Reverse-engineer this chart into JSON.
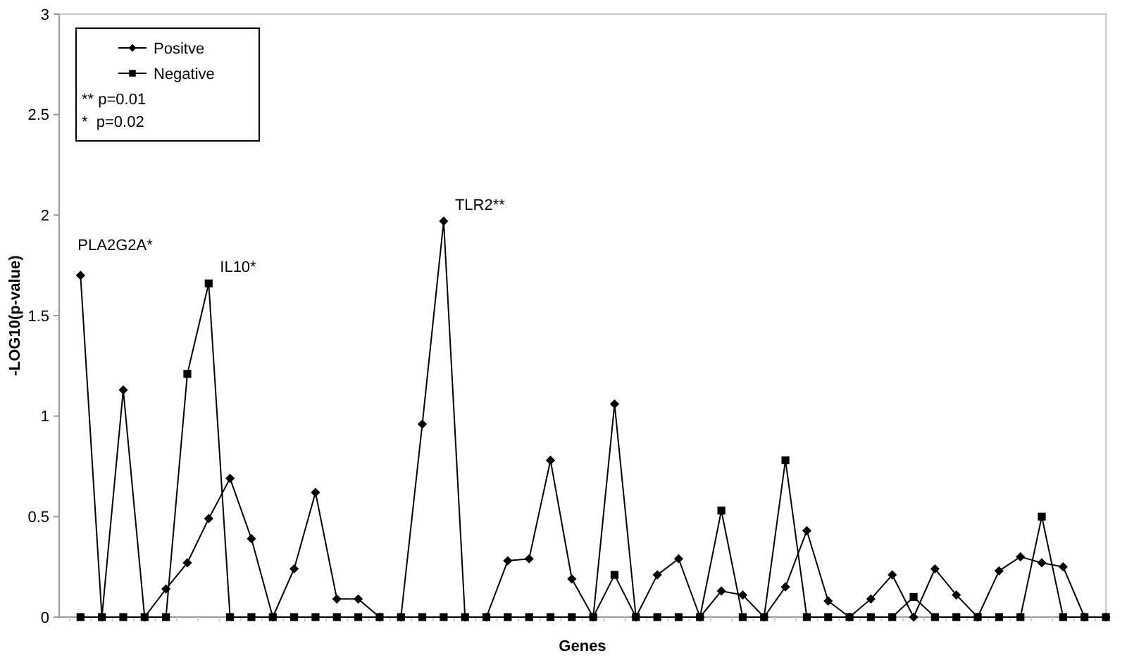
{
  "chart_data": {
    "type": "line",
    "xlabel": "Genes",
    "ylabel": "-LOG10(p-value)",
    "categories": [
      null,
      null,
      null,
      null,
      null,
      null,
      null,
      null,
      null,
      null,
      null,
      null,
      null,
      null,
      null,
      null,
      null,
      null,
      null,
      null,
      null,
      null,
      null,
      null,
      null,
      null,
      null,
      null,
      null,
      null,
      null,
      null,
      null,
      null,
      null,
      null,
      null,
      null,
      null,
      null,
      null,
      null,
      null,
      null,
      null,
      null,
      null,
      null,
      null
    ],
    "series": [
      {
        "name": "Positve",
        "color": "#000000",
        "marker": "diamond",
        "values": [
          1.7,
          0,
          1.13,
          0,
          0.14,
          0.27,
          0.49,
          0.69,
          0.39,
          0,
          0.24,
          0.62,
          0.09,
          0.09,
          0,
          0,
          0.96,
          1.97,
          0,
          0,
          0.28,
          0.29,
          0.78,
          0.19,
          0,
          1.06,
          0,
          0.21,
          0.29,
          0,
          0.13,
          0.11,
          0,
          0.15,
          0.43,
          0.08,
          0,
          0.09,
          0.21,
          0,
          0.24,
          0.11,
          0,
          0.23,
          0.3,
          0.27,
          0.25,
          0,
          0
        ]
      },
      {
        "name": "Negative",
        "color": "#000000",
        "marker": "square",
        "values": [
          0,
          0,
          0,
          0,
          0,
          1.21,
          1.66,
          0,
          0,
          0,
          0,
          0,
          0,
          0,
          0,
          0,
          0,
          0,
          0,
          0,
          0,
          0,
          0,
          0,
          0,
          0.21,
          0,
          0,
          0,
          0,
          0.53,
          0,
          0,
          0.78,
          0,
          0,
          0,
          0,
          0,
          0.1,
          0,
          0,
          0,
          0,
          0,
          0.5,
          0,
          0,
          0
        ]
      }
    ],
    "ylim": [
      0,
      3
    ],
    "yticks": [
      0,
      0.5,
      1,
      1.5,
      2,
      2.5,
      3
    ],
    "grid": false,
    "legend": "top left",
    "line_style": "solid",
    "annotations": [
      "PLA2G2A*",
      "IL10*",
      "TLR2**",
      "** p=0.01",
      "*  p=0.02"
    ]
  }
}
